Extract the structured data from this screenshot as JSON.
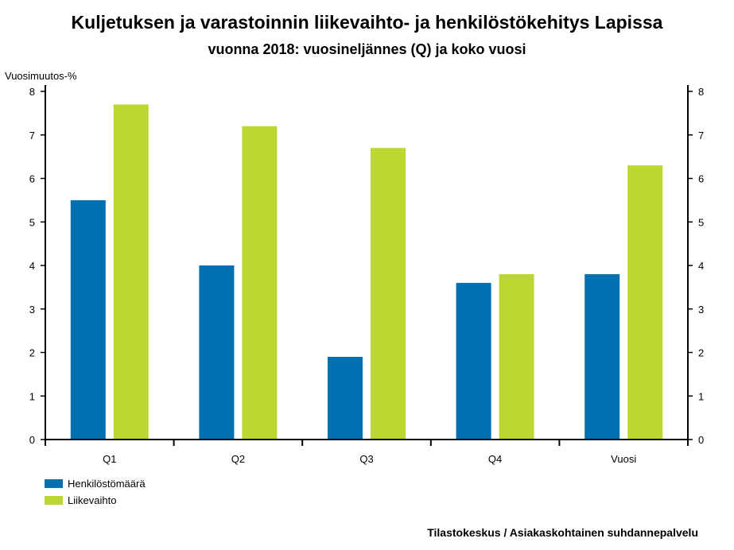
{
  "chart_data": {
    "type": "bar",
    "title": "Kuljetuksen ja varastoinnin liikevaihto- ja henkilöstökehitys Lapissa",
    "subtitle": "vuonna 2018: vuosineljännes (Q) ja koko vuosi",
    "ylabel": "Vuosimuutos-%",
    "categories": [
      "Q1",
      "Q2",
      "Q3",
      "Q4",
      "Vuosi"
    ],
    "ylim": [
      0,
      8
    ],
    "yticks": [
      0,
      1,
      2,
      3,
      4,
      5,
      6,
      7,
      8
    ],
    "series": [
      {
        "name": "Henkilöstömäärä",
        "color": "#0070b0",
        "values": [
          5.5,
          4.0,
          1.9,
          3.6,
          3.8
        ]
      },
      {
        "name": "Liikevaihto",
        "color": "#bed630",
        "values": [
          7.7,
          7.2,
          6.7,
          3.8,
          6.3
        ]
      }
    ],
    "legend_position": "bottom-left",
    "grid": false,
    "secondary_y_axis": true
  },
  "source": "Tilastokeskus / Asiakaskohtainen suhdannepalvelu"
}
